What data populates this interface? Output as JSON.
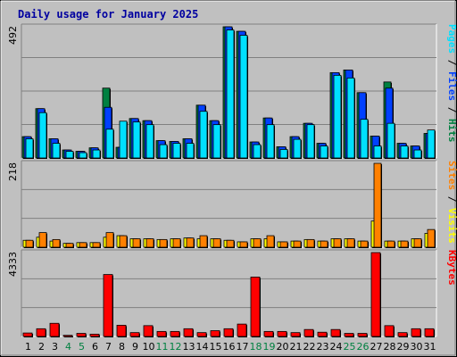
{
  "chart_data": {
    "type": "bar",
    "title": "Daily usage for January 2025",
    "colors": {
      "background": "#c0c0c0",
      "title": "#0000a0",
      "hits": "#008040",
      "files": "#0040ff",
      "pages": "#00e0ff",
      "visits": "#ffff00",
      "sites": "#ff8000",
      "kbytes": "#ff0000",
      "weekend_label": "#008040"
    },
    "categories": [
      "1",
      "2",
      "3",
      "4",
      "5",
      "6",
      "7",
      "8",
      "9",
      "10",
      "11",
      "12",
      "13",
      "14",
      "15",
      "16",
      "17",
      "18",
      "19",
      "20",
      "21",
      "22",
      "23",
      "24",
      "25",
      "26",
      "27",
      "28",
      "29",
      "30",
      "31"
    ],
    "weekend_days": [
      "4",
      "5",
      "11",
      "12",
      "18",
      "19",
      "25",
      "26"
    ],
    "panels": [
      {
        "id": "usage",
        "ymax_label": "492",
        "ylim": [
          0,
          492
        ],
        "side_label": [
          {
            "text": "Pages",
            "color": "#00e0ff"
          },
          {
            "text": " / ",
            "color": "#000000"
          },
          {
            "text": "Files",
            "color": "#0040ff"
          },
          {
            "text": " / ",
            "color": "#000000"
          },
          {
            "text": "Hits",
            "color": "#008040"
          }
        ],
        "series": [
          {
            "name": "Hits",
            "values": [
              80,
              185,
              72,
              30,
              25,
              38,
              262,
              40,
              148,
              140,
              65,
              62,
              72,
              198,
              140,
              492,
              475,
              60,
              150,
              42,
              80,
              130,
              55,
              320,
              330,
              245,
              82,
              285,
              55,
              45,
              92
            ]
          },
          {
            "name": "Files",
            "values": [
              80,
              185,
              72,
              30,
              25,
              38,
              190,
              40,
              148,
              140,
              65,
              62,
              72,
              198,
              140,
              492,
              475,
              60,
              150,
              42,
              80,
              130,
              55,
              320,
              330,
              245,
              82,
              262,
              55,
              45,
              92
            ]
          },
          {
            "name": "Pages",
            "values": [
              72,
              170,
              55,
              25,
              20,
              30,
              108,
              138,
              135,
              125,
              50,
              55,
              55,
              175,
              125,
              480,
              460,
              50,
              125,
              32,
              70,
              125,
              45,
              310,
              300,
              145,
              45,
              130,
              45,
              30,
              105
            ]
          }
        ]
      },
      {
        "id": "visitors",
        "ymax_label": "218",
        "ylim": [
          0,
          218
        ],
        "side_label": [
          {
            "text": "Sites",
            "color": "#ff8000"
          },
          {
            "text": " / ",
            "color": "#000000"
          },
          {
            "text": "Visits",
            "color": "#ffff00"
          }
        ],
        "series": [
          {
            "name": "Visits",
            "values": [
              18,
              26,
              16,
              10,
              12,
              12,
              26,
              30,
              22,
              22,
              20,
              22,
              24,
              22,
              22,
              18,
              14,
              22,
              22,
              14,
              16,
              20,
              16,
              22,
              22,
              16,
              68,
              16,
              16,
              22,
              36
            ]
          },
          {
            "name": "Sites",
            "values": [
              18,
              38,
              20,
              10,
              12,
              12,
              38,
              30,
              22,
              22,
              20,
              22,
              24,
              30,
              22,
              18,
              14,
              22,
              30,
              14,
              16,
              20,
              16,
              22,
              22,
              16,
              218,
              16,
              16,
              22,
              46
            ]
          }
        ]
      },
      {
        "id": "bytes",
        "ymax_label": "4333",
        "ylim": [
          0,
          4333
        ],
        "side_label": [
          {
            "text": "KBytes",
            "color": "#ff0000"
          }
        ],
        "series": [
          {
            "name": "KBytes",
            "values": [
              180,
              400,
              680,
              60,
              160,
              120,
              3200,
              580,
              200,
              560,
              260,
              260,
              400,
              200,
              300,
              400,
              640,
              3070,
              260,
              260,
              200,
              360,
              220,
              360,
              160,
              160,
              4333,
              560,
              200,
              400,
              400
            ]
          }
        ]
      }
    ]
  }
}
